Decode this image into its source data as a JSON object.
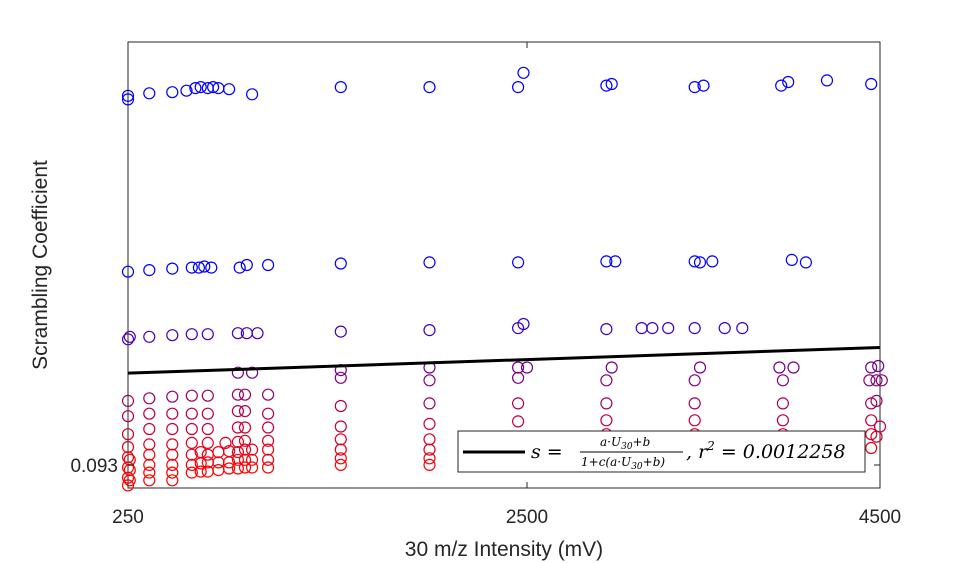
{
  "chart_data": {
    "type": "scatter",
    "xlabel": "30 m/z Intensity (mV)",
    "ylabel": "Scrambling Coefficient",
    "x_ticks": [
      "250",
      "2500",
      "4500"
    ],
    "y_ticks": [
      "0.093"
    ],
    "xlim": [
      250,
      4500
    ],
    "ylim": [
      0.088,
      0.175
    ],
    "grid": false,
    "legend": {
      "position": "bottom-right",
      "entries": [
        {
          "label_main": "s = ",
          "label_num": "a·U",
          "label_num_sub": "30",
          "label_num_end": "+b",
          "label_den": "1+c(a·U",
          "label_den_sub": "30",
          "label_den_end": "+b)",
          "label_r2": ", r",
          "label_r2_sup": "2",
          "label_r2_end": " = 0.0012258"
        }
      ]
    },
    "fit_line": {
      "color": "#000000",
      "x": [
        250,
        4500
      ],
      "y": [
        0.1104,
        0.1154
      ]
    },
    "colors": {
      "low": "#ff0000",
      "high": "#0000ff"
    },
    "points": [
      [
        250,
        0.1645
      ],
      [
        250,
        0.1638
      ],
      [
        370,
        0.165
      ],
      [
        500,
        0.1652
      ],
      [
        580,
        0.1655
      ],
      [
        630,
        0.166
      ],
      [
        660,
        0.1662
      ],
      [
        700,
        0.166
      ],
      [
        730,
        0.1662
      ],
      [
        760,
        0.166
      ],
      [
        820,
        0.1658
      ],
      [
        950,
        0.1648
      ],
      [
        1450,
        0.1662
      ],
      [
        1950,
        0.1662
      ],
      [
        2480,
        0.169
      ],
      [
        2450,
        0.1662
      ],
      [
        2950,
        0.1665
      ],
      [
        2980,
        0.1668
      ],
      [
        3450,
        0.1662
      ],
      [
        3500,
        0.1665
      ],
      [
        3940,
        0.1665
      ],
      [
        3980,
        0.1672
      ],
      [
        4200,
        0.1675
      ],
      [
        4450,
        0.1668
      ],
      [
        250,
        0.1302
      ],
      [
        370,
        0.1305
      ],
      [
        500,
        0.1308
      ],
      [
        610,
        0.131
      ],
      [
        650,
        0.131
      ],
      [
        680,
        0.1312
      ],
      [
        720,
        0.131
      ],
      [
        880,
        0.131
      ],
      [
        920,
        0.1315
      ],
      [
        1040,
        0.1315
      ],
      [
        1450,
        0.1318
      ],
      [
        1950,
        0.132
      ],
      [
        2450,
        0.132
      ],
      [
        2950,
        0.1322
      ],
      [
        3000,
        0.1322
      ],
      [
        3450,
        0.1322
      ],
      [
        3480,
        0.132
      ],
      [
        3550,
        0.1322
      ],
      [
        4000,
        0.1325
      ],
      [
        4080,
        0.132
      ],
      [
        250,
        0.117
      ],
      [
        260,
        0.1175
      ],
      [
        370,
        0.1175
      ],
      [
        500,
        0.1178
      ],
      [
        610,
        0.118
      ],
      [
        700,
        0.118
      ],
      [
        870,
        0.1182
      ],
      [
        920,
        0.1182
      ],
      [
        980,
        0.1182
      ],
      [
        1450,
        0.1185
      ],
      [
        1950,
        0.1188
      ],
      [
        2450,
        0.1192
      ],
      [
        2480,
        0.12
      ],
      [
        2950,
        0.119
      ],
      [
        3150,
        0.1192
      ],
      [
        3210,
        0.1192
      ],
      [
        3300,
        0.1192
      ],
      [
        3450,
        0.1192
      ],
      [
        3620,
        0.1192
      ],
      [
        3720,
        0.1192
      ],
      [
        250,
        0.105
      ],
      [
        370,
        0.1055
      ],
      [
        500,
        0.1058
      ],
      [
        610,
        0.106
      ],
      [
        700,
        0.106
      ],
      [
        870,
        0.1062
      ],
      [
        910,
        0.1062
      ],
      [
        1040,
        0.1062
      ],
      [
        1450,
        0.111
      ],
      [
        1950,
        0.1115
      ],
      [
        2450,
        0.1115
      ],
      [
        2500,
        0.1115
      ],
      [
        2980,
        0.1115
      ],
      [
        3480,
        0.1115
      ],
      [
        3930,
        0.1115
      ],
      [
        4010,
        0.1115
      ],
      [
        4450,
        0.1115
      ],
      [
        4490,
        0.1118
      ],
      [
        870,
        0.1105
      ],
      [
        950,
        0.1105
      ],
      [
        1450,
        0.1095
      ],
      [
        1950,
        0.109
      ],
      [
        2450,
        0.1095
      ],
      [
        2950,
        0.109
      ],
      [
        3450,
        0.109
      ],
      [
        3950,
        0.109
      ],
      [
        4440,
        0.109
      ],
      [
        4480,
        0.109
      ],
      [
        4510,
        0.109
      ],
      [
        250,
        0.102
      ],
      [
        370,
        0.1025
      ],
      [
        500,
        0.1025
      ],
      [
        610,
        0.1025
      ],
      [
        700,
        0.1025
      ],
      [
        870,
        0.103
      ],
      [
        910,
        0.103
      ],
      [
        1040,
        0.1025
      ],
      [
        1450,
        0.104
      ],
      [
        1950,
        0.1045
      ],
      [
        2450,
        0.1045
      ],
      [
        2950,
        0.1045
      ],
      [
        3450,
        0.1045
      ],
      [
        3950,
        0.1045
      ],
      [
        4450,
        0.1045
      ],
      [
        4480,
        0.105
      ],
      [
        250,
        0.0985
      ],
      [
        370,
        0.0995
      ],
      [
        500,
        0.0995
      ],
      [
        610,
        0.0995
      ],
      [
        700,
        0.0995
      ],
      [
        870,
        0.0998
      ],
      [
        910,
        0.0998
      ],
      [
        1040,
        0.0998
      ],
      [
        1450,
        0.1
      ],
      [
        1950,
        0.1005
      ],
      [
        2450,
        0.101
      ],
      [
        2950,
        0.1012
      ],
      [
        3450,
        0.1012
      ],
      [
        3950,
        0.1012
      ],
      [
        4450,
        0.1012
      ],
      [
        4500,
        0.1
      ],
      [
        250,
        0.096
      ],
      [
        370,
        0.0965
      ],
      [
        500,
        0.0965
      ],
      [
        610,
        0.0968
      ],
      [
        700,
        0.0968
      ],
      [
        800,
        0.0968
      ],
      [
        870,
        0.097
      ],
      [
        910,
        0.0972
      ],
      [
        1040,
        0.0972
      ],
      [
        1450,
        0.0975
      ],
      [
        1950,
        0.0975
      ],
      [
        2450,
        0.098
      ],
      [
        2950,
        0.0985
      ],
      [
        3450,
        0.0985
      ],
      [
        3950,
        0.0985
      ],
      [
        4450,
        0.0985
      ],
      [
        4480,
        0.098
      ],
      [
        250,
        0.094
      ],
      [
        260,
        0.0935
      ],
      [
        370,
        0.0945
      ],
      [
        500,
        0.0945
      ],
      [
        610,
        0.0945
      ],
      [
        660,
        0.095
      ],
      [
        700,
        0.0945
      ],
      [
        760,
        0.095
      ],
      [
        820,
        0.0952
      ],
      [
        870,
        0.095
      ],
      [
        910,
        0.0955
      ],
      [
        950,
        0.0955
      ],
      [
        1040,
        0.0955
      ],
      [
        1450,
        0.0955
      ],
      [
        1950,
        0.0955
      ],
      [
        2450,
        0.096
      ],
      [
        2950,
        0.096
      ],
      [
        3450,
        0.096
      ],
      [
        3950,
        0.096
      ],
      [
        4450,
        0.0958
      ],
      [
        250,
        0.092
      ],
      [
        260,
        0.0915
      ],
      [
        370,
        0.0925
      ],
      [
        500,
        0.0925
      ],
      [
        610,
        0.0925
      ],
      [
        660,
        0.0928
      ],
      [
        700,
        0.093
      ],
      [
        760,
        0.093
      ],
      [
        820,
        0.093
      ],
      [
        870,
        0.0935
      ],
      [
        910,
        0.0935
      ],
      [
        950,
        0.0935
      ],
      [
        1040,
        0.0935
      ],
      [
        1450,
        0.0938
      ],
      [
        1950,
        0.0938
      ],
      [
        2450,
        0.094
      ],
      [
        250,
        0.09
      ],
      [
        260,
        0.0895
      ],
      [
        370,
        0.091
      ],
      [
        500,
        0.091
      ],
      [
        610,
        0.091
      ],
      [
        660,
        0.0912
      ],
      [
        700,
        0.0912
      ],
      [
        760,
        0.0915
      ],
      [
        820,
        0.0918
      ],
      [
        870,
        0.0918
      ],
      [
        910,
        0.092
      ],
      [
        950,
        0.092
      ],
      [
        1040,
        0.092
      ],
      [
        1450,
        0.0925
      ],
      [
        1950,
        0.0925
      ],
      [
        250,
        0.0885
      ],
      [
        370,
        0.0895
      ],
      [
        500,
        0.0895
      ]
    ]
  }
}
